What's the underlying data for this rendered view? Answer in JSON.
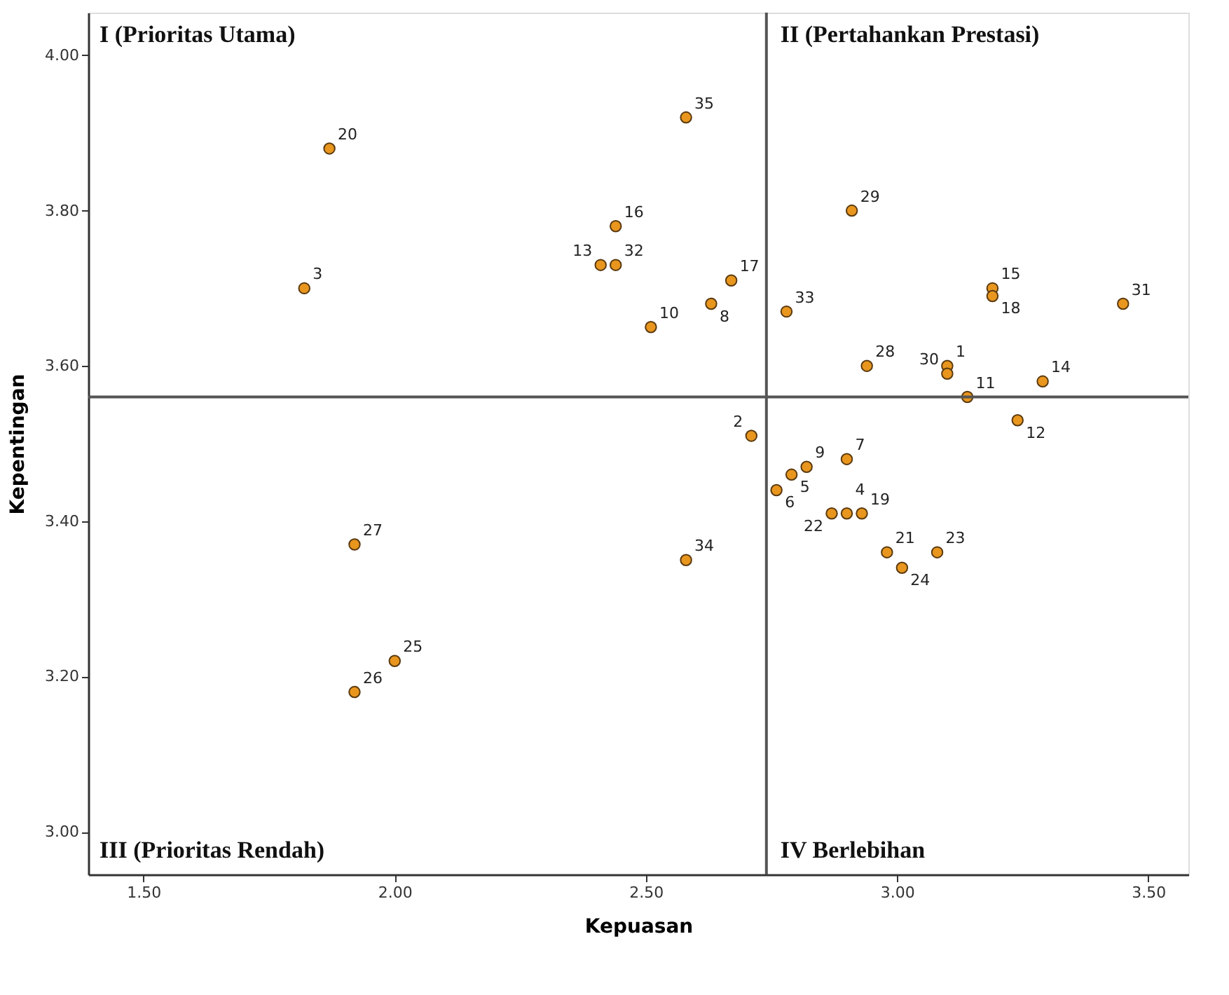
{
  "chart_data": {
    "type": "scatter",
    "xlabel": "Kepuasan",
    "ylabel": "Kepentingan",
    "annotations": [
      "I (Prioritas Utama)",
      "II (Pertahankan Prestasi)",
      "III (Prioritas Rendah)",
      "IV Berlebihan",
      {
        "text": "1",
        "x": 3.1,
        "y": 3.6
      },
      {
        "text": "2",
        "x": 2.71,
        "y": 3.51
      },
      {
        "text": "3",
        "x": 1.82,
        "y": 3.7
      },
      {
        "text": "4",
        "x": 2.9,
        "y": 3.41
      },
      {
        "text": "5",
        "x": 2.79,
        "y": 3.46
      },
      {
        "text": "6",
        "x": 2.76,
        "y": 3.44
      },
      {
        "text": "7",
        "x": 2.9,
        "y": 3.48
      },
      {
        "text": "8",
        "x": 2.63,
        "y": 3.68
      },
      {
        "text": "9",
        "x": 2.82,
        "y": 3.47
      },
      {
        "text": "10",
        "x": 2.51,
        "y": 3.65
      },
      {
        "text": "11",
        "x": 3.14,
        "y": 3.56
      },
      {
        "text": "12",
        "x": 3.24,
        "y": 3.53
      },
      {
        "text": "13",
        "x": 2.41,
        "y": 3.73
      },
      {
        "text": "14",
        "x": 3.29,
        "y": 3.58
      },
      {
        "text": "15",
        "x": 3.19,
        "y": 3.7
      },
      {
        "text": "16",
        "x": 2.44,
        "y": 3.78
      },
      {
        "text": "17",
        "x": 2.67,
        "y": 3.71
      },
      {
        "text": "18",
        "x": 3.19,
        "y": 3.69
      },
      {
        "text": "19",
        "x": 2.93,
        "y": 3.41
      },
      {
        "text": "20",
        "x": 1.87,
        "y": 3.88
      },
      {
        "text": "21",
        "x": 2.98,
        "y": 3.36
      },
      {
        "text": "22",
        "x": 2.87,
        "y": 3.41
      },
      {
        "text": "23",
        "x": 3.08,
        "y": 3.36
      },
      {
        "text": "24",
        "x": 3.01,
        "y": 3.34
      },
      {
        "text": "25",
        "x": 2.0,
        "y": 3.22
      },
      {
        "text": "26",
        "x": 1.92,
        "y": 3.18
      },
      {
        "text": "27",
        "x": 1.92,
        "y": 3.37
      },
      {
        "text": "28",
        "x": 2.94,
        "y": 3.6
      },
      {
        "text": "29",
        "x": 2.91,
        "y": 3.8
      },
      {
        "text": "30",
        "x": 3.1,
        "y": 3.59
      },
      {
        "text": "31",
        "x": 3.45,
        "y": 3.68
      },
      {
        "text": "32",
        "x": 2.44,
        "y": 3.73
      },
      {
        "text": "33",
        "x": 2.78,
        "y": 3.67
      },
      {
        "text": "34",
        "x": 2.58,
        "y": 3.35
      },
      {
        "text": "35",
        "x": 2.58,
        "y": 3.92
      }
    ],
    "x": [
      3.1,
      2.71,
      1.82,
      2.9,
      2.79,
      2.76,
      2.9,
      2.63,
      2.82,
      2.51,
      3.14,
      3.24,
      2.41,
      3.29,
      3.19,
      2.44,
      2.67,
      3.19,
      2.93,
      1.87,
      2.98,
      2.87,
      3.08,
      3.01,
      2.0,
      1.92,
      1.92,
      2.94,
      2.91,
      3.1,
      3.45,
      2.44,
      2.78,
      2.58,
      2.58
    ],
    "values": [
      3.6,
      3.51,
      3.7,
      3.41,
      3.46,
      3.44,
      3.48,
      3.68,
      3.47,
      3.65,
      3.56,
      3.53,
      3.73,
      3.58,
      3.7,
      3.78,
      3.71,
      3.69,
      3.41,
      3.88,
      3.36,
      3.41,
      3.36,
      3.34,
      3.22,
      3.18,
      3.37,
      3.6,
      3.8,
      3.59,
      3.68,
      3.73,
      3.67,
      3.35,
      3.92
    ],
    "color": "#e8961e",
    "marker": "circle",
    "xlim": [
      1.39,
      3.58
    ],
    "ylim": [
      2.945,
      4.055
    ],
    "xticks": [
      {
        "value": 1.5,
        "label": "1.50"
      },
      {
        "value": 2.0,
        "label": "2.00"
      },
      {
        "value": 2.5,
        "label": "2.50"
      },
      {
        "value": 3.0,
        "label": "3.00"
      },
      {
        "value": 3.5,
        "label": "3.50"
      }
    ],
    "yticks": [
      {
        "value": 3.0,
        "label": "3.00"
      },
      {
        "value": 3.2,
        "label": "3.20"
      },
      {
        "value": 3.4,
        "label": "3.40"
      },
      {
        "value": 3.6,
        "label": "3.60"
      },
      {
        "value": 3.8,
        "label": "3.80"
      },
      {
        "value": 4.0,
        "label": "4.00"
      }
    ],
    "ref_lines": [
      {
        "axis": "x",
        "value": 2.74
      },
      {
        "axis": "y",
        "value": 3.56
      }
    ],
    "grid": false
  }
}
